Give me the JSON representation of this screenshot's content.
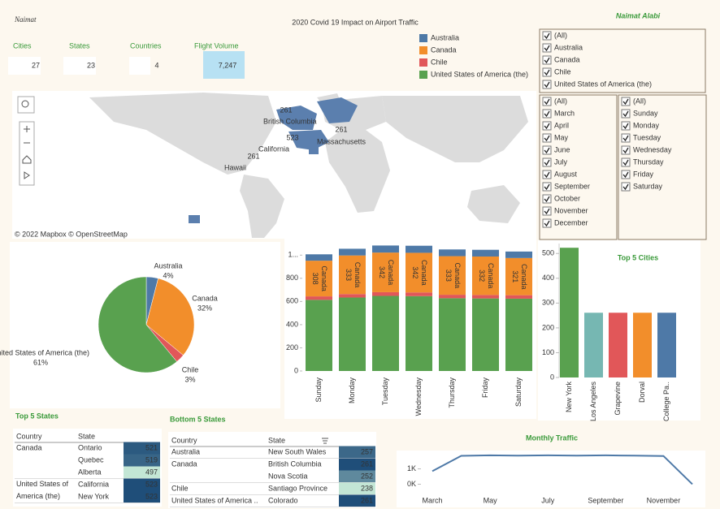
{
  "header": {
    "logo": "Naimat",
    "title": "2020 Covid 19 Impact on Airport Traffic",
    "author": "Naimat Alabi"
  },
  "kpis": [
    {
      "label": "Cities",
      "value": 27
    },
    {
      "label": "States",
      "value": 23
    },
    {
      "label": "Countries",
      "value": 4
    },
    {
      "label": "Flight Volume",
      "value": "7,247"
    }
  ],
  "legend": [
    {
      "name": "Australia",
      "color": "#4e79a7"
    },
    {
      "name": "Canada",
      "color": "#f28e2b"
    },
    {
      "name": "Chile",
      "color": "#e15759"
    },
    {
      "name": "United States of America (the)",
      "color": "#59a14f"
    }
  ],
  "filters": {
    "country": [
      "(All)",
      "Australia",
      "Canada",
      "Chile",
      "United States of America (the)"
    ],
    "month": [
      "(All)",
      "March",
      "April",
      "May",
      "June",
      "July",
      "August",
      "September",
      "October",
      "November",
      "December"
    ],
    "weekday": [
      "(All)",
      "Sunday",
      "Monday",
      "Tuesday",
      "Wednesday",
      "Thursday",
      "Friday",
      "Saturday"
    ]
  },
  "map": {
    "labels": [
      {
        "value": 261,
        "place": "British Columbia"
      },
      {
        "value": 523,
        "place": "California"
      },
      {
        "value": 261,
        "place": "Massachusetts"
      },
      {
        "value": 261,
        "place": "Hawaii"
      }
    ],
    "attribution": "© 2022 Mapbox  © OpenStreetMap"
  },
  "chart_data": [
    {
      "type": "pie",
      "categories": [
        "Australia",
        "Canada",
        "Chile",
        "United States of America (the)"
      ],
      "values": [
        4,
        32,
        3,
        61
      ],
      "value_labels": [
        "4%",
        "32%",
        "3%",
        "61%"
      ],
      "colors": [
        "#4e79a7",
        "#f28e2b",
        "#e15759",
        "#59a14f"
      ]
    },
    {
      "type": "stacked_bar",
      "categories": [
        "Sunday",
        "Monday",
        "Tuesday",
        "Wednesday",
        "Thursday",
        "Friday",
        "Saturday"
      ],
      "series": [
        {
          "name": "United States of America (the)",
          "color": "#59a14f",
          "values": [
            614,
            634,
            648,
            646,
            628,
            626,
            624
          ]
        },
        {
          "name": "Chile",
          "color": "#e15759",
          "values": [
            30,
            30,
            32,
            32,
            30,
            30,
            30
          ]
        },
        {
          "name": "Canada",
          "color": "#f28e2b",
          "values": [
            308,
            333,
            342,
            342,
            333,
            332,
            321
          ],
          "data_labels": true
        },
        {
          "name": "Australia",
          "color": "#4e79a7",
          "values": [
            55,
            58,
            61,
            61,
            58,
            58,
            56
          ]
        }
      ],
      "ylim": [
        0,
        1100
      ],
      "yticks": [
        0,
        200,
        400,
        600,
        800,
        {
          "value": 1000,
          "label": "1..."
        }
      ]
    },
    {
      "type": "bar",
      "title": "Top 5 Cities",
      "categories": [
        "New York",
        "Los Angeles",
        "Grapevine",
        "Dorval",
        "College Pa.."
      ],
      "values": [
        523,
        261,
        261,
        261,
        261
      ],
      "colors": [
        "#59a14f",
        "#76b7b2",
        "#e15759",
        "#f28e2b",
        "#4e79a7"
      ],
      "ylim": [
        0,
        540
      ],
      "yticks": [
        0,
        100,
        200,
        300,
        400,
        500
      ]
    },
    {
      "type": "line",
      "title": "Monthly Traffic",
      "categories": [
        "March",
        null,
        "May",
        null,
        "July",
        null,
        "September",
        null,
        "November",
        null
      ],
      "values": [
        850,
        1850,
        1880,
        1860,
        1880,
        1860,
        1880,
        1860,
        1840,
        0
      ],
      "color": "#4e79a7",
      "ylim": [
        -400,
        2300
      ],
      "yticks": [
        {
          "value": 0,
          "label": "0K"
        },
        {
          "value": 1000,
          "label": "1K"
        }
      ]
    }
  ],
  "tables": {
    "top_states": {
      "title": "Top 5 States",
      "columns": [
        "Country",
        "State"
      ],
      "groups": [
        {
          "country": "Canada",
          "rows": [
            {
              "state": "Ontario",
              "value": 521
            },
            {
              "state": "Quebec",
              "value": 519
            },
            {
              "state": "Alberta",
              "value": 497
            }
          ]
        },
        {
          "country": "United States of America (the)",
          "rows": [
            {
              "state": "California",
              "value": 523
            },
            {
              "state": "New York",
              "value": 523
            }
          ]
        }
      ]
    },
    "bottom_states": {
      "title": "Bottom 5 States",
      "columns": [
        "Country",
        "State"
      ],
      "groups": [
        {
          "country": "Australia",
          "rows": [
            {
              "state": "New South Wales",
              "value": 257
            }
          ]
        },
        {
          "country": "Canada",
          "rows": [
            {
              "state": "British Columbia",
              "value": 261
            },
            {
              "state": "Nova Scotia",
              "value": 252
            }
          ]
        },
        {
          "country": "Chile",
          "rows": [
            {
              "state": "Santiago Province",
              "value": 238
            }
          ]
        },
        {
          "country": "United States of America ..",
          "rows": [
            {
              "state": "Colorado",
              "value": 261
            }
          ]
        }
      ]
    }
  }
}
